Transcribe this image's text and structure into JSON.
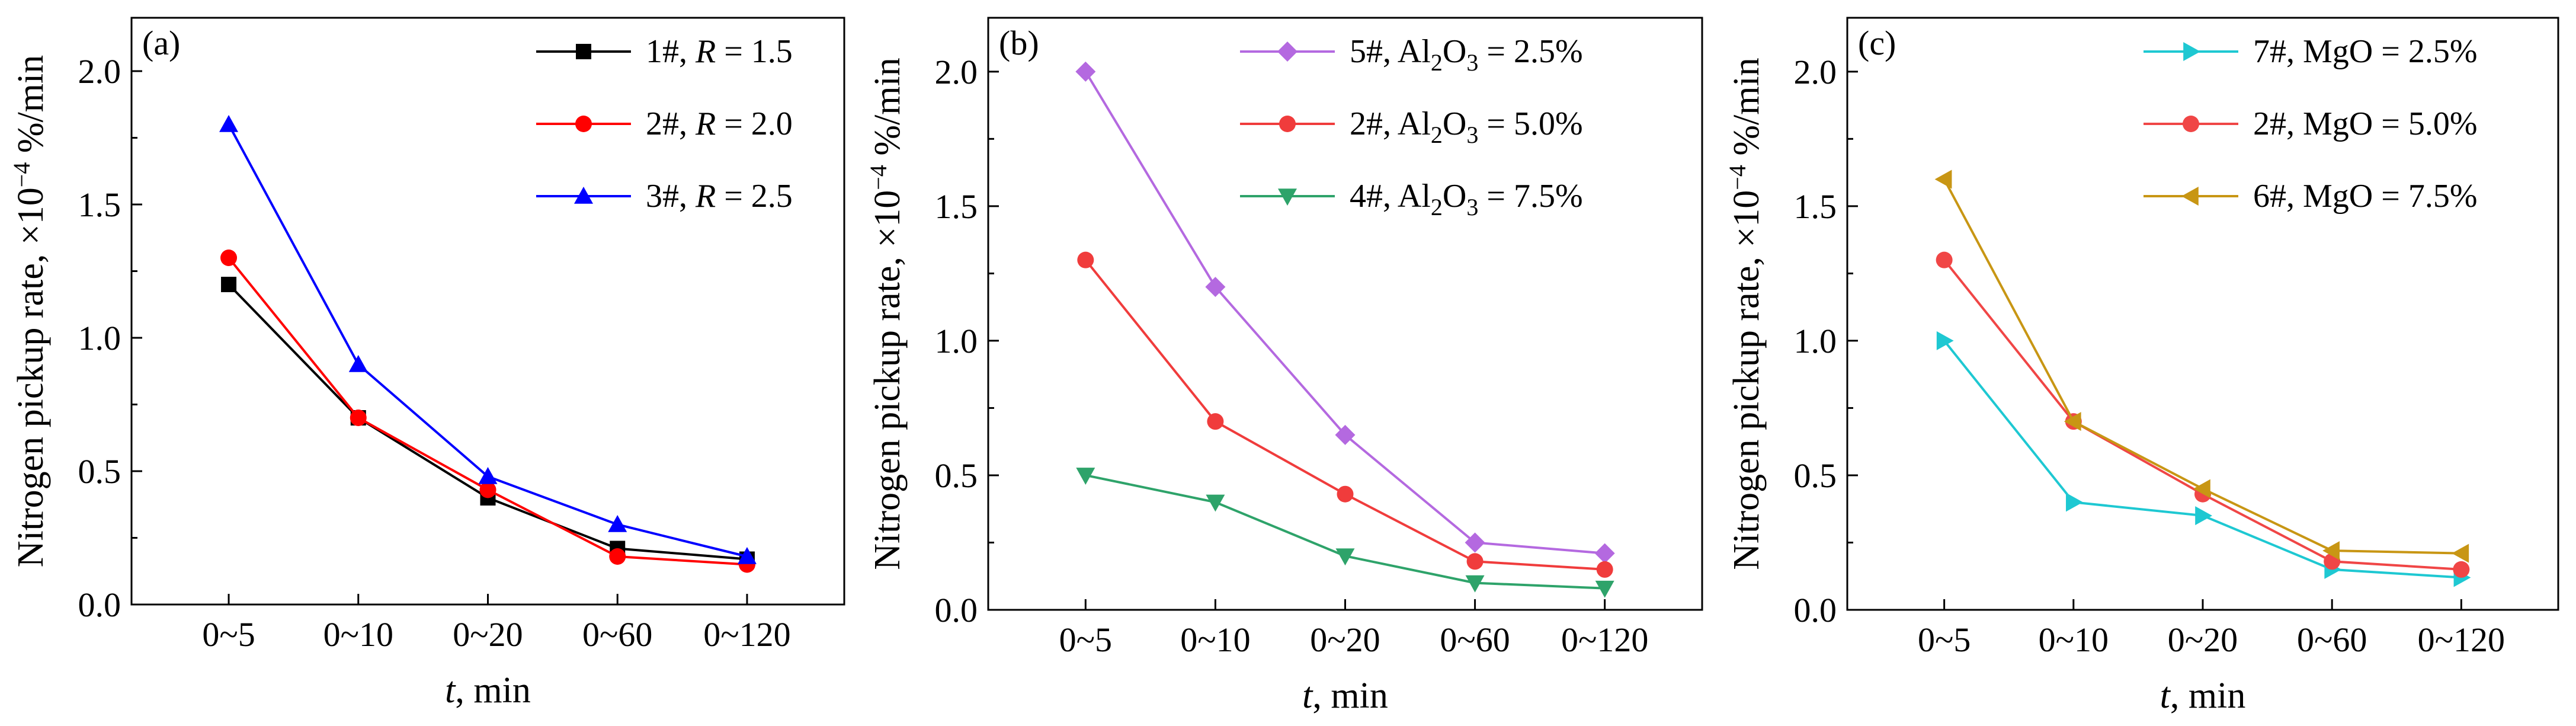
{
  "chart_data": [
    {
      "type": "line",
      "panel_label": "(a)",
      "categories": [
        "0~5",
        "0~10",
        "0~20",
        "0~60",
        "0~120"
      ],
      "xlabel": "t, min",
      "ylabel": "Nitrogen pickup rate, ×10−4 %/min",
      "ylim": [
        0,
        2.2
      ],
      "yticks": [
        0.0,
        0.5,
        1.0,
        1.5,
        2.0
      ],
      "ytick_labels": [
        "0.0",
        "0.5",
        "1.0",
        "1.5",
        "2.0"
      ],
      "legend_position": "top-right",
      "series": [
        {
          "name": "1#, R = 1.5",
          "label_main": "1#, ",
          "label_var": "R",
          "label_rest": " = 1.5",
          "color": "#000000",
          "marker": "square",
          "values": [
            1.2,
            0.7,
            0.4,
            0.21,
            0.17
          ]
        },
        {
          "name": "2#, R = 2.0",
          "label_main": "2#, ",
          "label_var": "R",
          "label_rest": " = 2.0",
          "color": "#ff0000",
          "marker": "circle",
          "values": [
            1.3,
            0.7,
            0.43,
            0.18,
            0.15
          ]
        },
        {
          "name": "3#, R = 2.5",
          "label_main": "3#, ",
          "label_var": "R",
          "label_rest": " = 2.5",
          "color": "#0000ff",
          "marker": "triangle-up",
          "values": [
            1.8,
            0.9,
            0.48,
            0.3,
            0.18
          ]
        }
      ]
    },
    {
      "type": "line",
      "panel_label": "(b)",
      "categories": [
        "0~5",
        "0~10",
        "0~20",
        "0~60",
        "0~120"
      ],
      "xlabel": "t, min",
      "ylabel": "Nitrogen pickup rate, ×10−4 %/min",
      "ylim": [
        0,
        2.2
      ],
      "yticks": [
        0.0,
        0.5,
        1.0,
        1.5,
        2.0
      ],
      "ytick_labels": [
        "0.0",
        "0.5",
        "1.0",
        "1.5",
        "2.0"
      ],
      "legend_position": "top-right",
      "series": [
        {
          "name": "5#, Al2O3 = 2.5%",
          "label_main": "5#, Al",
          "label_sub1": "2",
          "label_mid": "O",
          "label_sub2": "3",
          "label_rest": " = 2.5%",
          "color": "#b469e0",
          "marker": "diamond",
          "values": [
            2.0,
            1.2,
            0.65,
            0.25,
            0.21
          ]
        },
        {
          "name": "2#, Al2O3 = 5.0%",
          "label_main": "2#, Al",
          "label_sub1": "2",
          "label_mid": "O",
          "label_sub2": "3",
          "label_rest": " = 5.0%",
          "color": "#f03c3c",
          "marker": "circle",
          "values": [
            1.3,
            0.7,
            0.43,
            0.18,
            0.15
          ]
        },
        {
          "name": "4#, Al2O3 = 7.5%",
          "label_main": "4#, Al",
          "label_sub1": "2",
          "label_mid": "O",
          "label_sub2": "3",
          "label_rest": " = 7.5%",
          "color": "#2ea36a",
          "marker": "triangle-down",
          "values": [
            0.5,
            0.4,
            0.2,
            0.1,
            0.08
          ]
        }
      ]
    },
    {
      "type": "line",
      "panel_label": "(c)",
      "categories": [
        "0~5",
        "0~10",
        "0~20",
        "0~60",
        "0~120"
      ],
      "xlabel": "t, min",
      "ylabel": "Nitrogen pickup rate, ×10−4 %/min",
      "ylim": [
        0,
        2.2
      ],
      "yticks": [
        0.0,
        0.5,
        1.0,
        1.5,
        2.0
      ],
      "ytick_labels": [
        "0.0",
        "0.5",
        "1.0",
        "1.5",
        "2.0"
      ],
      "legend_position": "top-right",
      "series": [
        {
          "name": "7#, MgO = 2.5%",
          "label_main": "7#, MgO = 2.5%",
          "color": "#1ec8d2",
          "marker": "triangle-right",
          "values": [
            1.0,
            0.4,
            0.35,
            0.15,
            0.12
          ]
        },
        {
          "name": "2#, MgO = 5.0%",
          "label_main": "2#, MgO = 5.0%",
          "color": "#f04646",
          "marker": "circle",
          "values": [
            1.3,
            0.7,
            0.43,
            0.18,
            0.15
          ]
        },
        {
          "name": "6#, MgO = 7.5%",
          "label_main": "6#, MgO = 7.5%",
          "color": "#c89614",
          "marker": "triangle-left",
          "values": [
            1.6,
            0.7,
            0.45,
            0.22,
            0.21
          ]
        }
      ]
    }
  ],
  "axis_text": {
    "ylabel_main": "Nitrogen pickup rate, ×10",
    "ylabel_exp": "−4",
    "ylabel_unit": " %/min",
    "xlabel_var": "t",
    "xlabel_unit": ", min"
  }
}
